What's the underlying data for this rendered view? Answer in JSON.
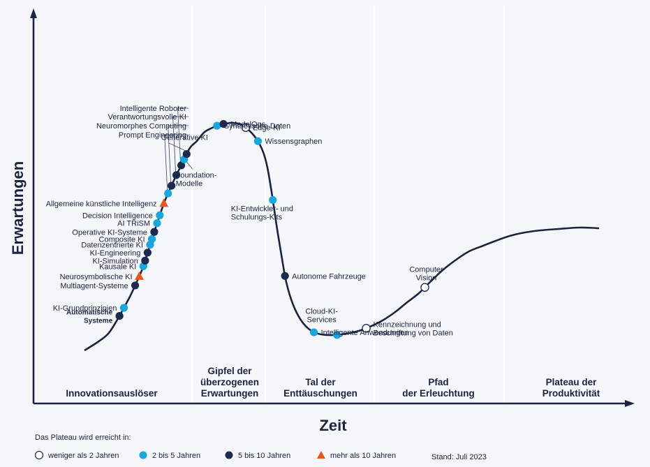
{
  "axes": {
    "x_label": "Zeit",
    "y_label": "Erwartungen"
  },
  "phases": [
    {
      "lines": [
        "Innovationsauslöser"
      ]
    },
    {
      "lines": [
        "Gipfel der",
        "überzogenen",
        "Erwartungen"
      ]
    },
    {
      "lines": [
        "Tal der",
        "Enttäuschungen"
      ]
    },
    {
      "lines": [
        "Pfad",
        "der Erleuchtung"
      ]
    },
    {
      "lines": [
        "Plateau der",
        "Produktivität"
      ]
    }
  ],
  "colors": {
    "under_2": "#ffffff",
    "2_to_5": "#1aa7e0",
    "5_to_10": "#1b2a4e",
    "over_10": "#e8561c",
    "curve": "#1b2340",
    "background": "#f4f6fa"
  },
  "technologies": [
    {
      "name": "Automatische Systeme",
      "cat": "5_to_10",
      "t": 0.06,
      "lines": [
        "Automatische",
        "Systeme"
      ],
      "bold": true,
      "side": "left"
    },
    {
      "name": "KI-Grundprinzipien",
      "cat": "2_to_5",
      "t": 0.071,
      "lines": [
        "KI-Grundprinzipien"
      ],
      "side": "left"
    },
    {
      "name": "Multiagent-Systeme",
      "cat": "5_to_10",
      "t": 0.101,
      "lines": [
        "Multiagent-Systeme"
      ],
      "side": "left"
    },
    {
      "name": "Neurosymbolische KI",
      "cat": "over_10",
      "t": 0.113,
      "lines": [
        "Neurosymbolische KI"
      ],
      "side": "left"
    },
    {
      "name": "Kausale KI",
      "cat": "2_to_5",
      "t": 0.126,
      "lines": [
        "Kausale KI"
      ],
      "side": "left"
    },
    {
      "name": "KI-Simulation",
      "cat": "5_to_10",
      "t": 0.133,
      "lines": [
        "KI-Simulation"
      ],
      "side": "left"
    },
    {
      "name": "KI-Engineering",
      "cat": "5_to_10",
      "t": 0.143,
      "lines": [
        "KI-Engineering"
      ],
      "side": "left"
    },
    {
      "name": "Datenzentrierte KI",
      "cat": "2_to_5",
      "t": 0.153,
      "lines": [
        "Datenzentrierte KI"
      ],
      "side": "left"
    },
    {
      "name": "Composite KI",
      "cat": "2_to_5",
      "t": 0.16,
      "lines": [
        "Composite KI"
      ],
      "side": "left"
    },
    {
      "name": "Operative KI-Systeme",
      "cat": "5_to_10",
      "t": 0.169,
      "lines": [
        "Operative KI-Systeme"
      ],
      "side": "left"
    },
    {
      "name": "AI TRiSM",
      "cat": "2_to_5",
      "t": 0.18,
      "lines": [
        "AI TRiSM"
      ],
      "side": "left"
    },
    {
      "name": "Decision Intelligence",
      "cat": "2_to_5",
      "t": 0.19,
      "lines": [
        "Decision Intelligence"
      ],
      "side": "left"
    },
    {
      "name": "Allgemeine künstliche Intelligenz",
      "cat": "over_10",
      "t": 0.205,
      "lines": [
        "Allgemeine künstliche Intelligenz"
      ],
      "side": "left"
    },
    {
      "name": "Prompt Engineering",
      "cat": "2_to_5",
      "t": 0.218,
      "lines": [
        "Prompt Engineering"
      ],
      "side": "leader"
    },
    {
      "name": "Neuromorphes Computing",
      "cat": "5_to_10",
      "t": 0.228,
      "lines": [
        "Neuromorphes Computing"
      ],
      "side": "leader"
    },
    {
      "name": "Verantwortungsvolle KI",
      "cat": "5_to_10",
      "t": 0.242,
      "lines": [
        "Verantwortungsvolle KI"
      ],
      "side": "leader"
    },
    {
      "name": "Intelligente Roboter",
      "cat": "5_to_10",
      "t": 0.255,
      "lines": [
        "Intelligente Roboter"
      ],
      "side": "leader"
    },
    {
      "name": "Foundation-Modelle",
      "cat": "2_to_5",
      "t": 0.263,
      "lines": [
        "Foundation-",
        "Modelle"
      ],
      "side": "below"
    },
    {
      "name": "Generative KI",
      "cat": "5_to_10",
      "t": 0.27,
      "lines": [
        "Generative KI"
      ],
      "side": "above"
    },
    {
      "name": "Synthetische Daten",
      "cat": "2_to_5",
      "t": 0.321,
      "lines": [
        "Synthetische Daten"
      ],
      "side": "right"
    },
    {
      "name": "ModelOps",
      "cat": "5_to_10",
      "t": 0.329,
      "lines": [
        "ModelOps"
      ],
      "side": "right"
    },
    {
      "name": "Edge-KI",
      "cat": "under_2",
      "t": 0.357,
      "lines": [
        "Edge-KI"
      ],
      "side": "right"
    },
    {
      "name": "Wissensgraphen",
      "cat": "2_to_5",
      "t": 0.379,
      "lines": [
        "Wissensgraphen"
      ],
      "side": "right"
    },
    {
      "name": "KI-Entwickler- und Schulungs-Kits",
      "cat": "2_to_5",
      "t": 0.452,
      "lines": [
        "KI-Entwickler- und",
        "Schulungs-Kits"
      ],
      "side": "below"
    },
    {
      "name": "Autonome Fahrzeuge",
      "cat": "5_to_10",
      "t": 0.544,
      "lines": [
        "Autonome Fahrzeuge"
      ],
      "side": "right"
    },
    {
      "name": "Intelligente Anwendungen",
      "cat": "2_to_5",
      "t": 0.622,
      "lines": [
        "Intelligente Anwendungen"
      ],
      "side": "right"
    },
    {
      "name": "Cloud-KI-Services",
      "cat": "2_to_5",
      "t": 0.65,
      "lines": [
        "Cloud-KI-",
        "Services"
      ],
      "side": "aboveleft"
    },
    {
      "name": "Kennzeichnung und Beschriftung von Daten",
      "cat": "under_2",
      "t": 0.686,
      "lines": [
        "Kennzeichnung und",
        "Beschriftung von Daten"
      ],
      "side": "right"
    },
    {
      "name": "Computer Vision",
      "cat": "under_2",
      "t": 0.772,
      "lines": [
        "Computer",
        "Vision"
      ],
      "side": "above"
    }
  ],
  "legend": {
    "title": "Das Plateau wird erreicht in:",
    "items": [
      {
        "cat": "under_2",
        "label": "weniger als 2 Jahren",
        "shape": "circle"
      },
      {
        "cat": "2_to_5",
        "label": "2 bis 5 Jahren",
        "shape": "circle"
      },
      {
        "cat": "5_to_10",
        "label": "5 bis 10 Jahren",
        "shape": "circle"
      },
      {
        "cat": "over_10",
        "label": "mehr als 10 Jahren",
        "shape": "triangle"
      }
    ],
    "date": "Stand: Juli 2023"
  }
}
